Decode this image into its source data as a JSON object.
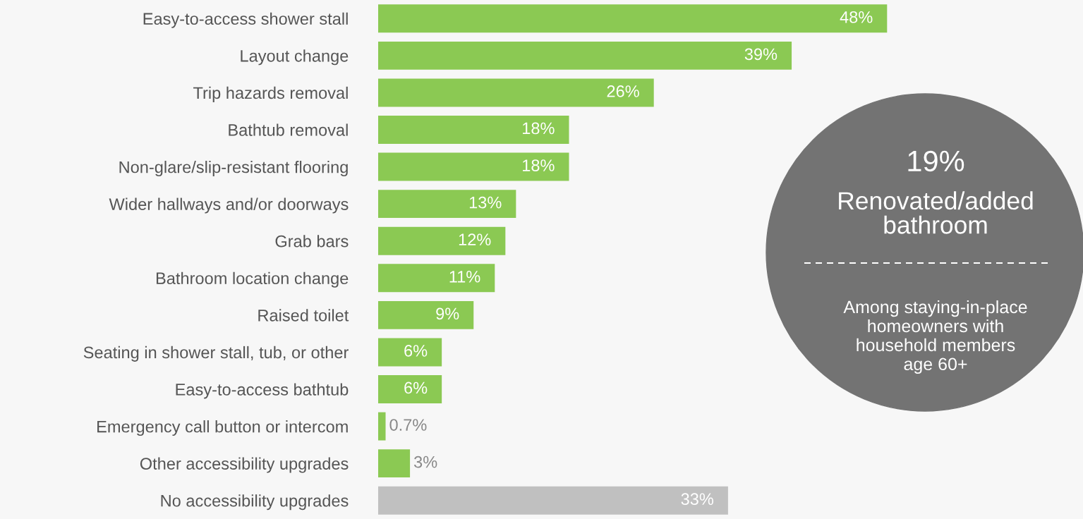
{
  "chart_data": {
    "type": "bar",
    "orientation": "horizontal",
    "categories": [
      "Easy-to-access shower stall",
      "Layout change",
      "Trip hazards removal",
      "Bathtub removal",
      "Non-glare/slip-resistant flooring",
      "Wider hallways and/or doorways",
      "Grab bars",
      "Bathroom location change",
      "Raised toilet",
      "Seating in shower stall, tub, or other",
      "Easy-to-access bathtub",
      "Emergency call button or intercom",
      "Other accessibility upgrades",
      "No accessibility upgrades"
    ],
    "values": [
      48,
      39,
      26,
      18,
      18,
      13,
      12,
      11,
      9,
      6,
      6,
      0.7,
      3,
      33
    ],
    "colors": [
      "#8bc953",
      "#8bc953",
      "#8bc953",
      "#8bc953",
      "#8bc953",
      "#8bc953",
      "#8bc953",
      "#8bc953",
      "#8bc953",
      "#8bc953",
      "#8bc953",
      "#8bc953",
      "#8bc953",
      "#c0c0c0"
    ],
    "value_labels": [
      "48%",
      "39%",
      "26%",
      "18%",
      "18%",
      "13%",
      "12%",
      "11%",
      "9%",
      "6%",
      "6%",
      "0.7%",
      "3%",
      "33%"
    ],
    "annotations": [
      "19%",
      "Renovated/added\nbathroom",
      "Among staying-in-place\nhomeowners with\nhousehold members\nage 60+"
    ],
    "grid": false,
    "legend": false
  }
}
